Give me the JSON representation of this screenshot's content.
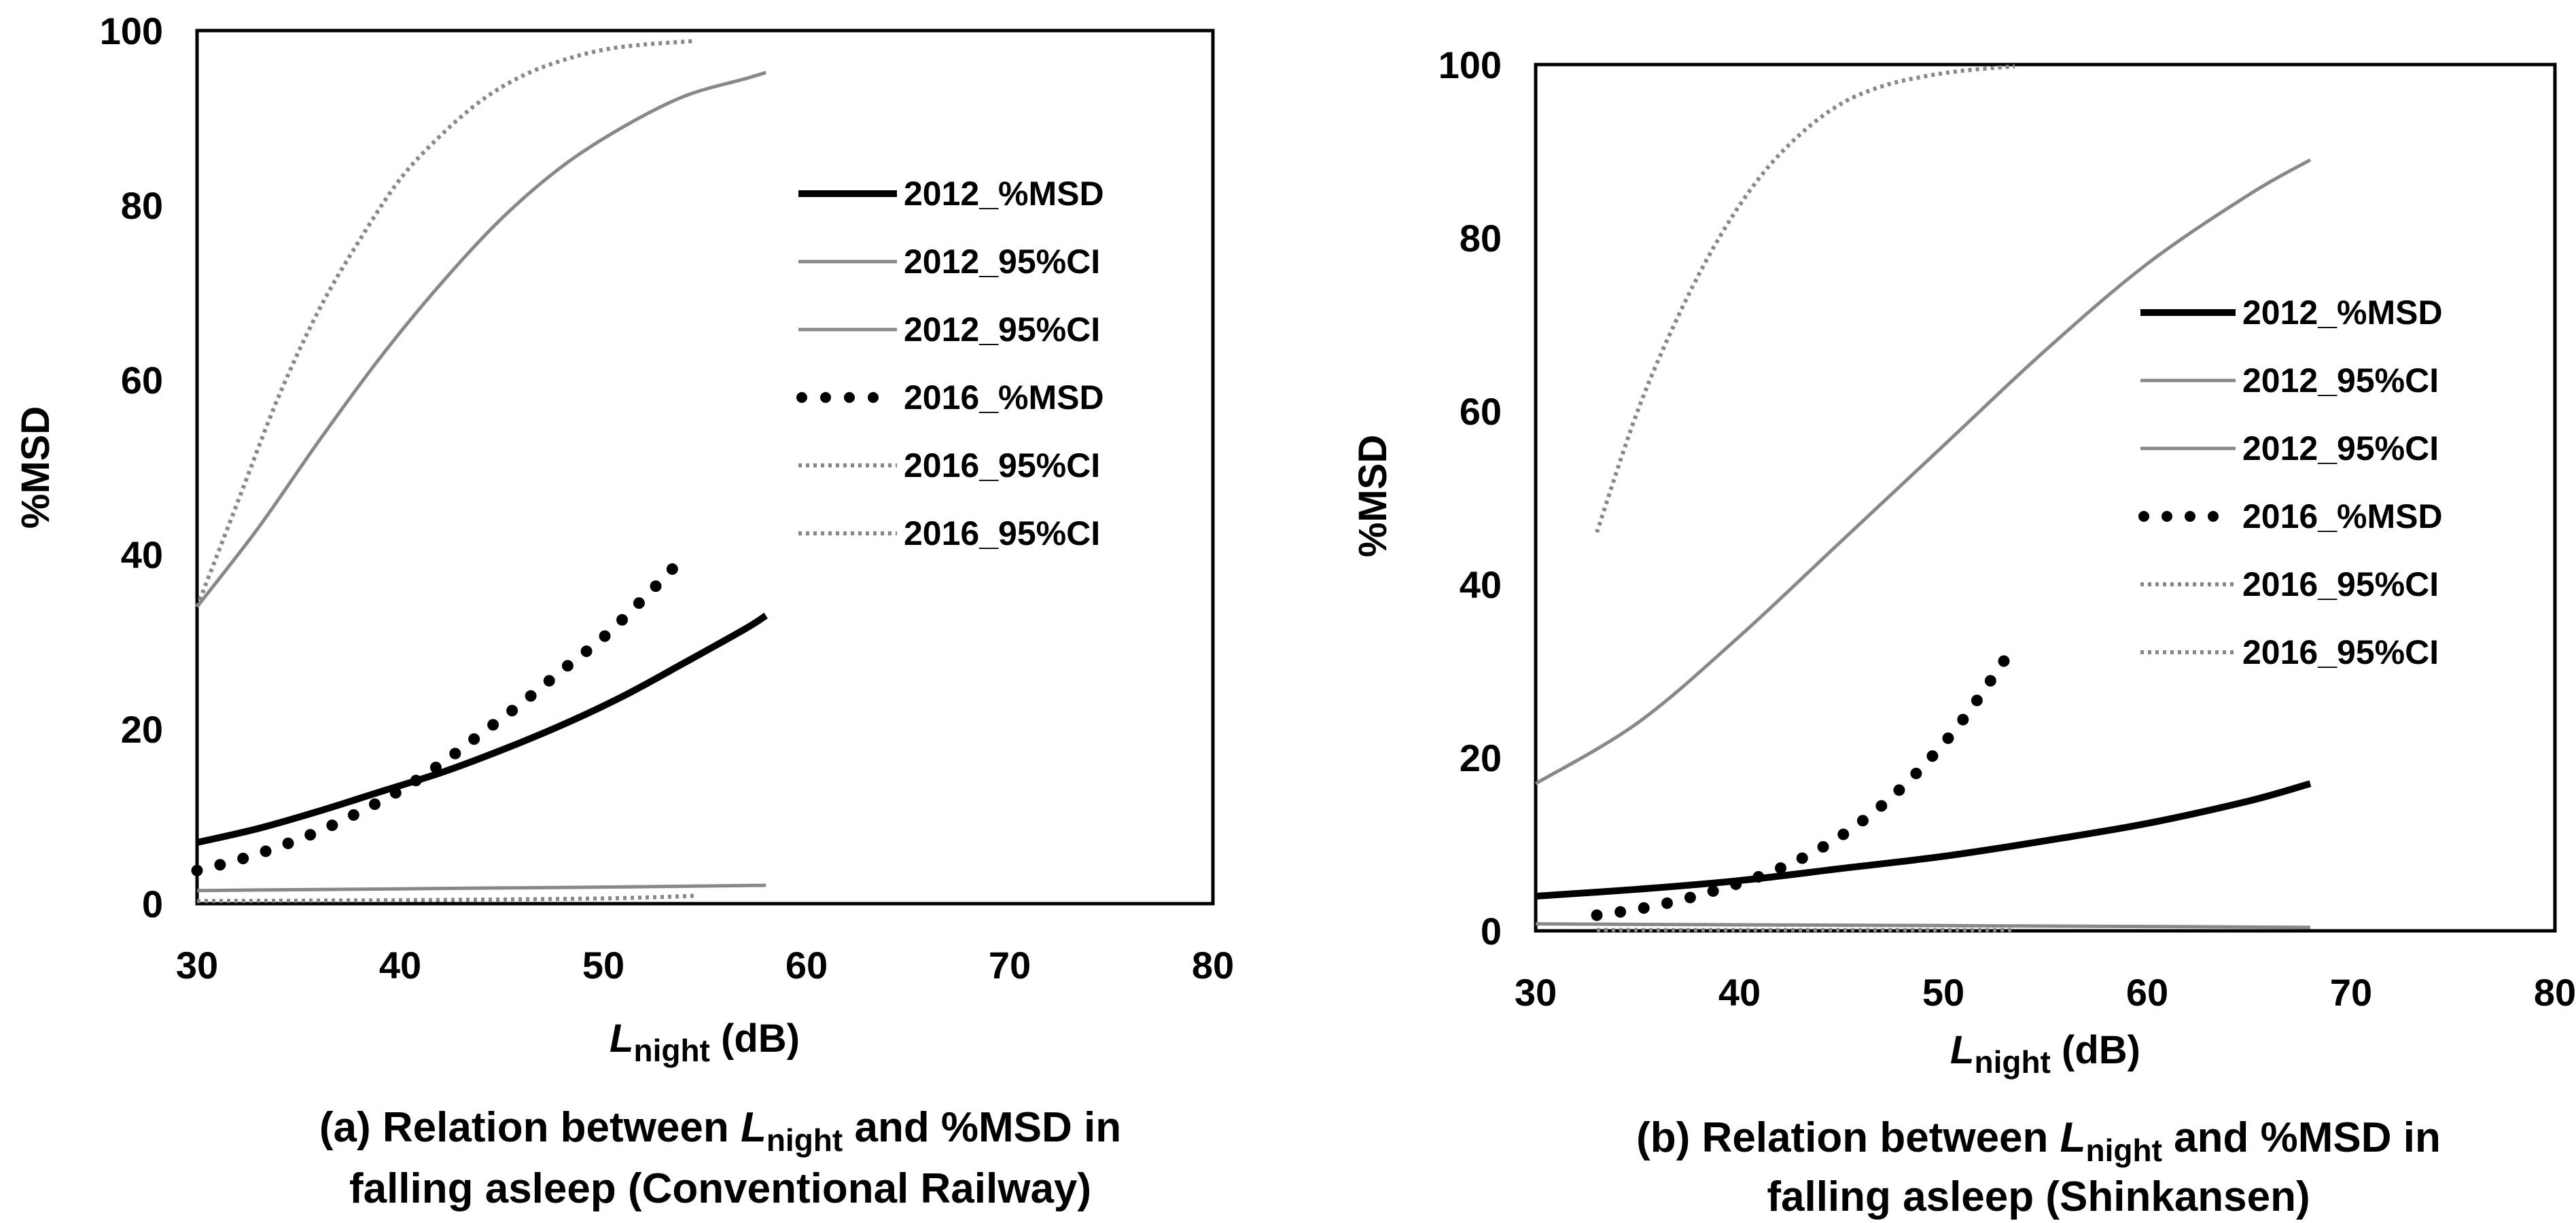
{
  "chart_data": [
    {
      "type": "line",
      "id": "a",
      "caption_line1_pre": "(a) Relation between ",
      "caption_line1_var": "L",
      "caption_line1_sub": "night",
      "caption_line1_post": " and %MSD in",
      "caption_line2": "falling asleep (Conventional Railway)",
      "xlabel_var": "L",
      "xlabel_sub": "night",
      "xlabel_unit": " (dB)",
      "ylabel": "%MSD",
      "xlim": [
        30,
        80
      ],
      "ylim": [
        0,
        100
      ],
      "xticks": [
        "30",
        "40",
        "50",
        "60",
        "70",
        "80"
      ],
      "yticks": [
        "0",
        "20",
        "40",
        "60",
        "80",
        "100"
      ],
      "grid": false,
      "legend_position": "upper-right",
      "series": [
        {
          "name": "2012_%MSD",
          "style": "solid-black",
          "x": [
            30,
            33,
            36,
            39,
            42,
            45,
            48,
            51,
            54,
            57,
            58
          ],
          "y": [
            7.0,
            8.6,
            10.6,
            12.8,
            15.0,
            17.6,
            20.5,
            23.8,
            27.6,
            31.5,
            33.0
          ]
        },
        {
          "name": "2012_95%CI",
          "style": "solid-gray",
          "x": [
            30,
            33,
            36,
            39,
            42,
            45,
            48,
            51,
            54,
            57,
            58
          ],
          "y": [
            34,
            43,
            53,
            62.5,
            71,
            78.5,
            84.5,
            89,
            92.5,
            94.5,
            95.2
          ]
        },
        {
          "name": "2012_95%CI",
          "style": "solid-gray",
          "x": [
            30,
            40,
            50,
            58
          ],
          "y": [
            1.5,
            1.7,
            1.9,
            2.1
          ]
        },
        {
          "name": "2016_%MSD",
          "style": "dotted-black",
          "x": [
            30,
            32,
            34,
            36,
            38,
            40,
            42,
            44,
            46,
            48,
            50,
            52,
            54
          ],
          "y": [
            3.8,
            5.0,
            6.5,
            8.3,
            10.5,
            13.0,
            16.0,
            19.5,
            23.0,
            26.8,
            30.5,
            35.0,
            39.8
          ]
        },
        {
          "name": "2016_95%CI",
          "style": "dotted-gray",
          "x": [
            30,
            32,
            34,
            36,
            38,
            40,
            42,
            44,
            46,
            48,
            50,
            52,
            54.5
          ],
          "y": [
            34,
            46,
            58,
            68,
            76,
            83,
            88,
            92,
            94.8,
            96.6,
            97.8,
            98.4,
            98.8
          ]
        },
        {
          "name": "2016_95%CI",
          "style": "dotted-gray",
          "x": [
            30,
            40,
            50,
            54.5
          ],
          "y": [
            0.3,
            0.4,
            0.6,
            0.9
          ]
        }
      ]
    },
    {
      "type": "line",
      "id": "b",
      "caption_line1_pre": "(b) Relation between ",
      "caption_line1_var": "L",
      "caption_line1_sub": "night",
      "caption_line1_post": " and %MSD in",
      "caption_line2": "falling asleep (Shinkansen)",
      "xlabel_var": "L",
      "xlabel_sub": "night",
      "xlabel_unit": " (dB)",
      "ylabel": "%MSD",
      "xlim": [
        30,
        80
      ],
      "ylim": [
        0,
        100
      ],
      "xticks": [
        "30",
        "40",
        "50",
        "60",
        "70",
        "80"
      ],
      "yticks": [
        "0",
        "20",
        "40",
        "60",
        "80",
        "100"
      ],
      "grid": false,
      "legend_position": "right",
      "series": [
        {
          "name": "2012_%MSD",
          "style": "solid-black",
          "x": [
            30,
            35,
            40,
            45,
            50,
            55,
            60,
            65,
            68
          ],
          "y": [
            4.0,
            4.8,
            5.8,
            7.2,
            8.6,
            10.4,
            12.4,
            15.0,
            17.0
          ]
        },
        {
          "name": "2012_95%CI",
          "style": "solid-gray",
          "x": [
            30,
            35,
            40,
            45,
            50,
            55,
            60,
            65,
            68
          ],
          "y": [
            17,
            24,
            34,
            45,
            56,
            67,
            77,
            85,
            89
          ]
        },
        {
          "name": "2012_95%CI",
          "style": "solid-gray",
          "x": [
            30,
            40,
            50,
            60,
            68
          ],
          "y": [
            0.8,
            0.7,
            0.6,
            0.5,
            0.4
          ]
        },
        {
          "name": "2016_%MSD",
          "style": "dotted-black",
          "x": [
            33,
            35,
            37,
            39,
            41,
            43,
            45,
            47,
            49,
            51,
            53.3
          ],
          "y": [
            1.8,
            2.5,
            3.5,
            4.8,
            6.3,
            8.3,
            11.0,
            14.5,
            19.0,
            24.5,
            32.3
          ]
        },
        {
          "name": "2016_95%CI",
          "style": "dotted-gray",
          "x": [
            33,
            35,
            37,
            39,
            41,
            43,
            45,
            47,
            49,
            51,
            53.5
          ],
          "y": [
            46,
            60,
            71,
            80,
            87,
            92,
            95.5,
            97.5,
            98.6,
            99.3,
            99.8
          ]
        },
        {
          "name": "2016_95%CI",
          "style": "dotted-gray",
          "x": [
            33,
            40,
            50,
            53.5
          ],
          "y": [
            0.1,
            0.1,
            0.1,
            0.1
          ]
        }
      ]
    }
  ]
}
